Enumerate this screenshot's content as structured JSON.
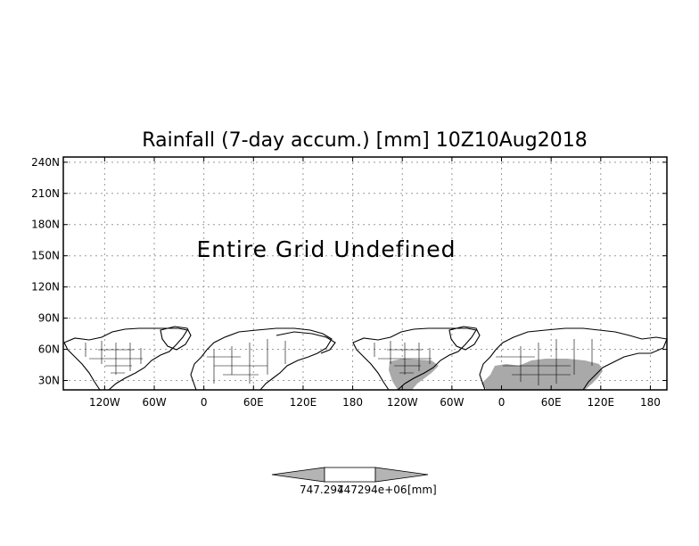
{
  "map": {
    "title": "Rainfall (7-day accum.) [mm] 10Z10Aug2018",
    "message": "Entire Grid Undefined",
    "lat_labels": [
      "240N",
      "210N",
      "180N",
      "150N",
      "120N",
      "90N",
      "60N",
      "30N"
    ],
    "lat_values": [
      240,
      210,
      180,
      150,
      120,
      90,
      60,
      30
    ],
    "lon_labels": [
      "120W",
      "60W",
      "0",
      "60E",
      "120E",
      "180",
      "120W",
      "60W",
      "0",
      "60E",
      "120E",
      "180"
    ],
    "lon_values": [
      -120,
      -60,
      0,
      60,
      120,
      180,
      240,
      300,
      360,
      420,
      480,
      540
    ],
    "lat_range": [
      21,
      245
    ],
    "lon_range": [
      -170,
      560
    ],
    "land_shade_color": "#a9a9a9",
    "gridlines": true
  },
  "colorbar": {
    "label_left": "747.294",
    "label_right": "747294e+06",
    "unit": "[mm]",
    "fill_color": "#b4b4b4"
  }
}
